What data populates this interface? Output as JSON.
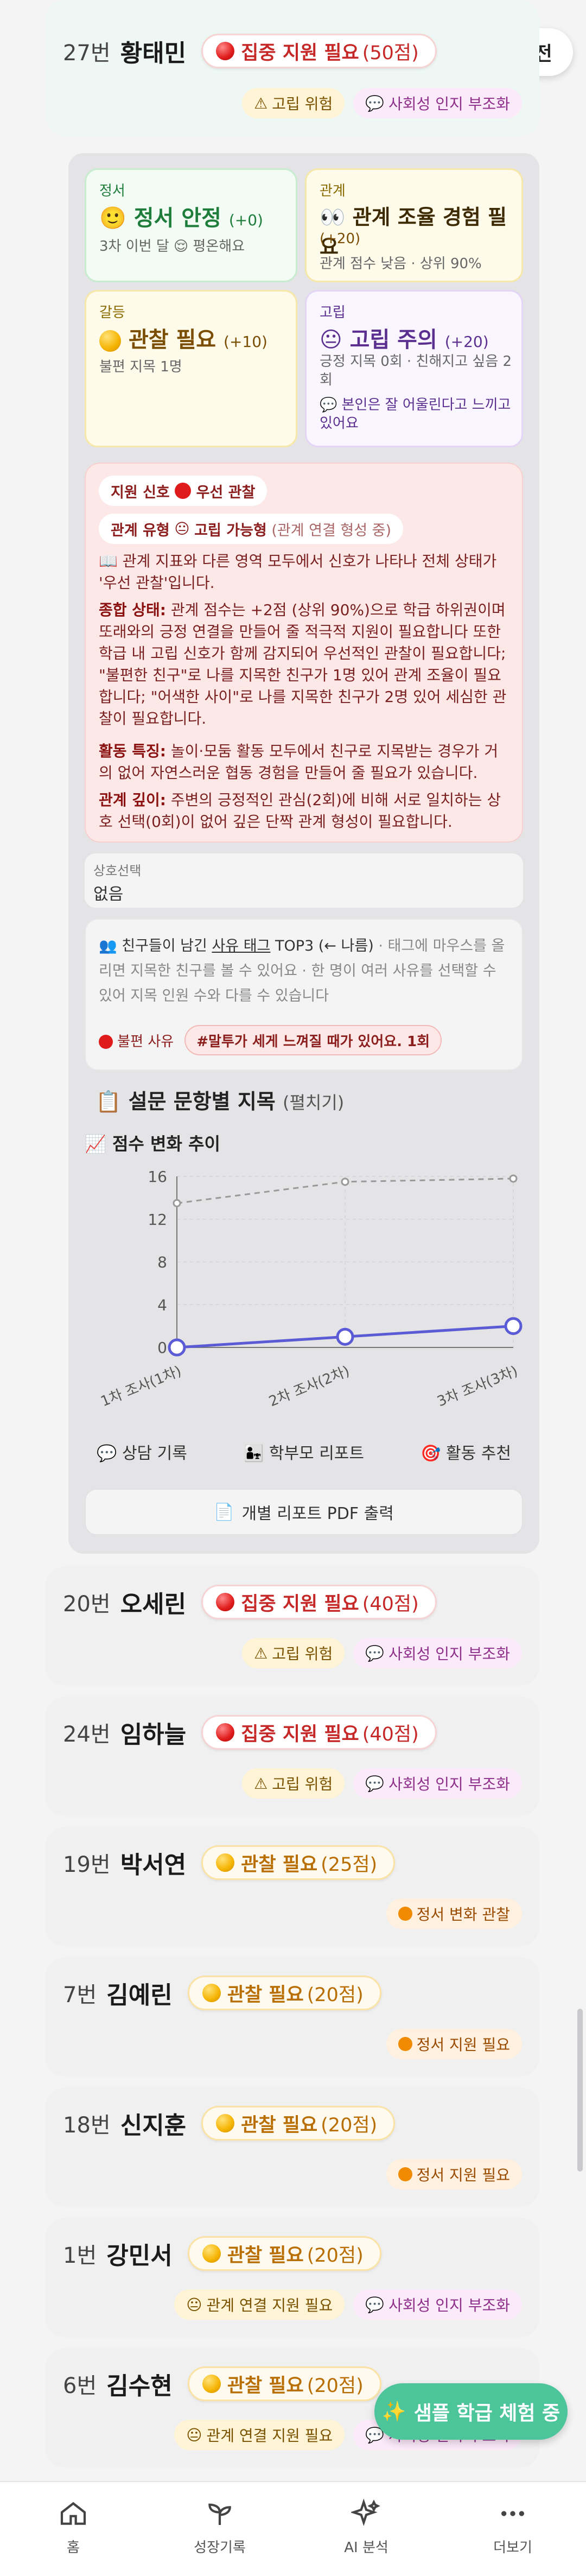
{
  "header": {
    "back_label": "이전"
  },
  "students": [
    {
      "num": "27번",
      "name": "황태민",
      "level": "집중 지원 필요",
      "score": "(50점)",
      "tags": [
        "고립 위험",
        "사회성 인지 부조화"
      ]
    },
    {
      "num": "20번",
      "name": "오세린",
      "level": "집중 지원 필요",
      "score": "(40점)",
      "tags": [
        "고립 위험",
        "사회성 인지 부조화"
      ]
    },
    {
      "num": "24번",
      "name": "임하늘",
      "level": "집중 지원 필요",
      "score": "(40점)",
      "tags": [
        "고립 위험",
        "사회성 인지 부조화"
      ]
    },
    {
      "num": "19번",
      "name": "박서연",
      "level": "관찰 필요",
      "score": "(25점)",
      "tags": [
        "정서 변화 관찰"
      ]
    },
    {
      "num": "7번",
      "name": "김예린",
      "level": "관찰 필요",
      "score": "(20점)",
      "tags": [
        "정서 지원 필요"
      ]
    },
    {
      "num": "18번",
      "name": "신지훈",
      "level": "관찰 필요",
      "score": "(20점)",
      "tags": [
        "정서 지원 필요"
      ]
    },
    {
      "num": "1번",
      "name": "강민서",
      "level": "관찰 필요",
      "score": "(20점)",
      "tags": [
        "관계 연결 지원 필요",
        "사회성 인지 부조화"
      ]
    },
    {
      "num": "6번",
      "name": "김수현",
      "level": "관찰 필요",
      "score": "(20점)",
      "tags": [
        "관계 연결 지원 필요",
        "사회성 인지 부조화"
      ]
    }
  ],
  "detail": {
    "emotion": {
      "label": "정서",
      "title": "정서 안정",
      "delta": "(+0)",
      "sub": "3차 이번 달",
      "sub2": "평온해요"
    },
    "relation": {
      "label": "관계",
      "title": "관계 조율 경험 필요",
      "delta": "(+20)",
      "sub": "관계 점수 낮음 · 상위 90%"
    },
    "conflict": {
      "label": "갈등",
      "title": "관찰 필요",
      "delta": "(+10)",
      "sub": "불편 지목 1명"
    },
    "isolation": {
      "label": "고립",
      "title": "고립 주의",
      "delta": "(+20)",
      "sub": "긍정 지목 0회 · 친해지고 싶음 2회",
      "note": "본인은 잘 어울린다고 느끼고 있어요"
    },
    "signal": {
      "pill1_prefix": "지원 신호",
      "pill1_value": "우선 관찰",
      "pill2_prefix": "관계 유형",
      "pill2_value": "고립 가능형",
      "pill2_sub": "(관계 연결 형성 중)",
      "intro": "관계 지표와 다른 영역 모두에서 신호가 나타나 전체 상태가 '우선 관찰'입니다.",
      "summary_label": "종합 상태:",
      "summary_text": "관계 점수는 +2점 (상위 90%)으로 학급 하위권이며 또래와의 긍정 연결을 만들어 줄 적극적 지원이 필요합니다 또한 학급 내 고립 신호가 함께 감지되어 우선적인 관찰이 필요합니다; \"불편한 친구\"로 나를 지목한 친구가 1명 있어 관계 조율이 필요합니다; \"어색한 사이\"로 나를 지목한 친구가 2명 있어 세심한 관찰이 필요합니다.",
      "activity_label": "활동 특징:",
      "activity_text": "놀이·모둠 활동 모두에서 친구로 지목받는 경우가 거의 없어 자연스러운 협동 경험을 만들어 줄 필요가 있습니다.",
      "depth_label": "관계 깊이:",
      "depth_text": "주변의 긍정적인 관심(2회)에 비해 서로 일치하는 상호 선택(0회)이 없어 깊은 단짝 관계 형성이 필요합니다."
    },
    "mutual": {
      "label": "상호선택",
      "value": "없음"
    },
    "reason": {
      "prefix": "친구들이 남긴",
      "highlight": "사유 태그",
      "top": "TOP3 (← 나름)",
      "rest": "· 태그에 마우스를 올리면 지목한 친구를 볼 수 있어요 · 한 명이 여러 사유를 선택할 수 있어 지목 인원 수와 다를 수 있습니다",
      "tag_label": "불편 사유",
      "tag_value": "#말투가 세게 느껴질 때가 있어요. 1회"
    },
    "survey": {
      "title": "설문 문항별 지목",
      "toggle": "(펼치기)"
    },
    "trend": {
      "title": "점수 변화 추이"
    },
    "actions": [
      "상담 기록",
      "학부모 리포트",
      "활동 추천"
    ],
    "pdf_label": "개별 리포트 PDF 출력"
  },
  "chart_data": {
    "type": "line",
    "title": "점수 변화 추이",
    "categories": [
      "1차 조사(1차)",
      "2차 조사(2차)",
      "3차 조사(3차)"
    ],
    "series": [
      {
        "values": [
          0,
          1,
          2
        ],
        "color": "#5b5bd6"
      },
      {
        "values": [
          13.5,
          15.5,
          15.8
        ],
        "color": "#999999"
      }
    ],
    "ylim": [
      0,
      16
    ],
    "yticks": [
      0,
      4,
      8,
      12,
      16
    ],
    "grid": true
  },
  "fab_label": "샘플 학급 체험 중",
  "nav": [
    "홈",
    "성장기록",
    "AI 분석",
    "더보기"
  ],
  "colors": {
    "accent": "#4cc59a",
    "danger": "#e01b1b",
    "warning": "#f5b300",
    "line": "#5b5bd6"
  }
}
